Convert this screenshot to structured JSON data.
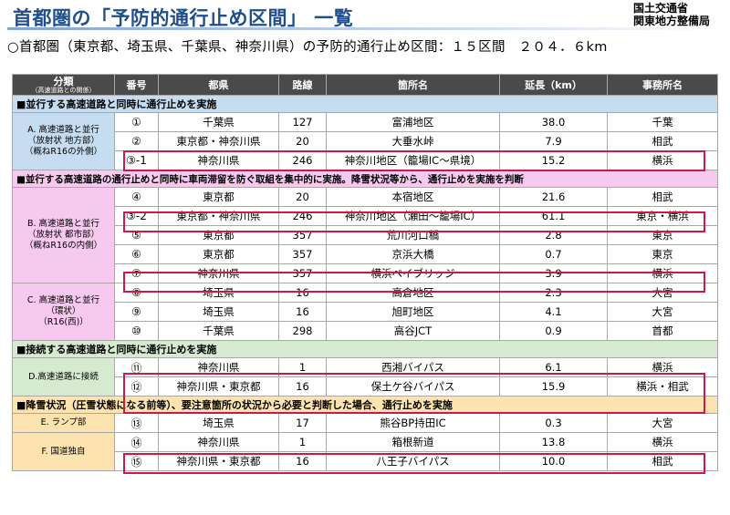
{
  "header": {
    "title": "首都圏の「予防的通行止め区間」 一覧",
    "org_line1": "国土交通省",
    "org_line2": "関東地方整備局",
    "subtitle": "○首都圏（東京都、埼玉県、千葉県、神奈川県）の予防的通行止め区間：１５区間　２０４．６km"
  },
  "columns": {
    "category": "分類",
    "category_sub": "（高速道路との関係）",
    "number": "番号",
    "prefecture": "都県",
    "route": "路線",
    "location": "箇所名",
    "length": "延長（km）",
    "office": "事務所名"
  },
  "sections": {
    "s1": "■並行する高速道路と同時に通行止めを実施",
    "s2": "■並行する高速道路の通行止めと同時に車両滞留を防ぐ取組を集中的に実施。降雪状況等から、通行止めを実施を判断",
    "s3": "■接続する高速道路と同時に通行止めを実施",
    "s4": "■降雪状況（圧雪状態になる前等）、要注意箇所の状況から必要と判断した場合、通行止めを実施"
  },
  "categories": {
    "A": "A. 高速道路と並行\n（放射状 地方部）\n（概ねR16の外側）",
    "B": "B. 高速道路と並行\n（放射状 都市部）\n（概ねR16の内側）",
    "C": "C. 高速道路と並行\n（環状）\n（R16(西)）",
    "D": "D.高速道路に接続",
    "E": "E. ランプ部",
    "F": "F. 国道独自"
  },
  "rows": [
    {
      "no": "①",
      "pref": "千葉県",
      "route": "127",
      "loc": "富浦地区",
      "len": "38.0",
      "office": "千葉"
    },
    {
      "no": "②",
      "pref": "東京都・神奈川県",
      "route": "20",
      "loc": "大垂水峠",
      "len": "7.9",
      "office": "相武"
    },
    {
      "no": "③-1",
      "pref": "神奈川県",
      "route": "246",
      "loc": "神奈川地区（籠場IC～県境）",
      "len": "15.2",
      "office": "横浜"
    },
    {
      "no": "④",
      "pref": "東京都",
      "route": "20",
      "loc": "本宿地区",
      "len": "21.6",
      "office": "相武"
    },
    {
      "no": "③-2",
      "pref": "東京都・神奈川県",
      "route": "246",
      "loc": "神奈川地区（瀬田～籠場IC）",
      "len": "61.1",
      "office": "東京・横浜"
    },
    {
      "no": "⑤",
      "pref": "東京都",
      "route": "357",
      "loc": "荒川河口橋",
      "len": "2.8",
      "office": "東京"
    },
    {
      "no": "⑥",
      "pref": "東京都",
      "route": "357",
      "loc": "京浜大橋",
      "len": "0.7",
      "office": "東京"
    },
    {
      "no": "⑦",
      "pref": "神奈川県",
      "route": "357",
      "loc": "横浜ベイブリッジ",
      "len": "3.9",
      "office": "横浜"
    },
    {
      "no": "⑧",
      "pref": "埼玉県",
      "route": "16",
      "loc": "高倉地区",
      "len": "2.3",
      "office": "大宮"
    },
    {
      "no": "⑨",
      "pref": "埼玉県",
      "route": "16",
      "loc": "旭町地区",
      "len": "4.1",
      "office": "大宮"
    },
    {
      "no": "⑩",
      "pref": "千葉県",
      "route": "298",
      "loc": "高谷JCT",
      "len": "0.9",
      "office": "首都"
    },
    {
      "no": "⑪",
      "pref": "神奈川県",
      "route": "1",
      "loc": "西湘バイパス",
      "len": "6.1",
      "office": "横浜"
    },
    {
      "no": "⑫",
      "pref": "神奈川県・東京都",
      "route": "16",
      "loc": "保土ケ谷バイパス",
      "len": "15.9",
      "office": "横浜・相武"
    },
    {
      "no": "⑬",
      "pref": "埼玉県",
      "route": "17",
      "loc": "熊谷BP持田IC",
      "len": "0.3",
      "office": "大宮"
    },
    {
      "no": "⑭",
      "pref": "神奈川県",
      "route": "1",
      "loc": "箱根新道",
      "len": "13.8",
      "office": "横浜"
    },
    {
      "no": "⑮",
      "pref": "神奈川県・東京都",
      "route": "16",
      "loc": "八王子バイパス",
      "len": "10.0",
      "office": "相武"
    }
  ],
  "colors": {
    "title": "#1f4e8c",
    "header_bg": "#4a4a4a",
    "section_a": "#c6dcf0",
    "section_b": "#f7c9ef",
    "section_c": "#d6ead0",
    "section_d": "#fde3b0",
    "highlight": "#d01848"
  }
}
